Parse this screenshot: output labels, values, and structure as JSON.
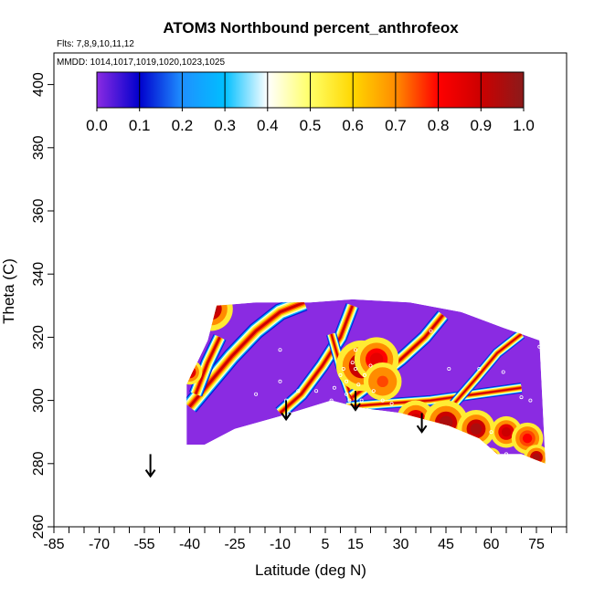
{
  "chart_data": {
    "type": "heatmap",
    "title": "ATOM3 Northbound percent_anthrofeox",
    "info_lines": [
      "Flts: 7,8,9,10,11,12",
      "MMDD: 1014,1017,1019,1020,1023,1025"
    ],
    "xlabel": "Latitude (deg N)",
    "ylabel": "Theta (C)",
    "xlim": [
      -85,
      85
    ],
    "ylim": [
      260,
      410
    ],
    "x_ticks": [
      -85,
      -70,
      -55,
      -40,
      -25,
      -10,
      5,
      15,
      30,
      45,
      60,
      75
    ],
    "x_minor_tick_step": 5,
    "y_ticks": [
      260,
      280,
      300,
      320,
      340,
      360,
      380,
      400
    ],
    "colorbar": {
      "ticks": [
        "0.0",
        "0.1",
        "0.2",
        "0.3",
        "0.4",
        "0.5",
        "0.6",
        "0.7",
        "0.8",
        "0.9",
        "1.0"
      ],
      "range": [
        0,
        1
      ],
      "stops": [
        "#8a2be2",
        "#0000cd",
        "#1e90ff",
        "#00bfff",
        "#ffffff",
        "#ffff66",
        "#ffd700",
        "#ff8c00",
        "#ff0000",
        "#cc0000",
        "#8b1a1a"
      ]
    },
    "background_color": "#8a2be2",
    "domain_outline": [
      [
        -41,
        286
      ],
      [
        -41,
        305
      ],
      [
        -38,
        311
      ],
      [
        -34,
        319
      ],
      [
        -31,
        330
      ],
      [
        -18,
        331
      ],
      [
        0,
        331
      ],
      [
        14,
        332
      ],
      [
        33,
        331
      ],
      [
        50,
        328
      ],
      [
        64,
        323
      ],
      [
        70,
        321
      ],
      [
        76,
        319
      ],
      [
        78,
        280
      ],
      [
        70,
        283
      ],
      [
        62,
        283
      ],
      [
        56,
        288
      ],
      [
        46,
        292
      ],
      [
        38,
        294
      ],
      [
        30,
        296
      ],
      [
        22,
        297
      ],
      [
        15,
        298
      ],
      [
        7,
        300
      ],
      [
        -10,
        295
      ],
      [
        -25,
        291
      ],
      [
        -35,
        286
      ]
    ],
    "bands": [
      {
        "points": [
          [
            -40,
            298
          ],
          [
            -33,
            306
          ],
          [
            -26,
            314
          ],
          [
            -18,
            322
          ],
          [
            -10,
            328
          ],
          [
            -2,
            331
          ]
        ],
        "width": 5
      },
      {
        "points": [
          [
            -38,
            302
          ],
          [
            -34,
            312
          ],
          [
            -30,
            320
          ]
        ],
        "width": 4
      },
      {
        "points": [
          [
            -10,
            296
          ],
          [
            -3,
            302
          ],
          [
            4,
            311
          ],
          [
            10,
            320
          ],
          [
            14,
            330
          ]
        ],
        "width": 4
      },
      {
        "points": [
          [
            14,
            300
          ],
          [
            10,
            311
          ],
          [
            7,
            321
          ]
        ],
        "width": 3
      },
      {
        "points": [
          [
            14,
            301
          ],
          [
            22,
            307
          ],
          [
            30,
            313
          ],
          [
            38,
            320
          ],
          [
            44,
            327
          ]
        ],
        "width": 4
      },
      {
        "points": [
          [
            12,
            298
          ],
          [
            25,
            299
          ],
          [
            40,
            300
          ],
          [
            55,
            302
          ],
          [
            70,
            304
          ]
        ],
        "width": 3
      },
      {
        "points": [
          [
            45,
            296
          ],
          [
            55,
            307
          ],
          [
            62,
            315
          ],
          [
            70,
            321
          ]
        ],
        "width": 3
      }
    ],
    "hotspots": [
      {
        "x": -33,
        "y": 329,
        "r": 7,
        "value": 0.95
      },
      {
        "x": -40,
        "y": 309,
        "r": 4,
        "value": 0.9
      },
      {
        "x": 17,
        "y": 311,
        "r": 8,
        "value": 0.95
      },
      {
        "x": 22,
        "y": 313,
        "r": 7,
        "value": 0.85
      },
      {
        "x": 24,
        "y": 306,
        "r": 6,
        "value": 0.75
      },
      {
        "x": 35,
        "y": 294,
        "r": 6,
        "value": 0.9
      },
      {
        "x": 45,
        "y": 293,
        "r": 7,
        "value": 0.95
      },
      {
        "x": 55,
        "y": 291,
        "r": 6,
        "value": 0.95
      },
      {
        "x": 65,
        "y": 290,
        "r": 5,
        "value": 0.9
      },
      {
        "x": 72,
        "y": 288,
        "r": 5,
        "value": 0.8
      },
      {
        "x": 75,
        "y": 282,
        "r": 4,
        "value": 0.95
      },
      {
        "x": 60,
        "y": 282,
        "r": 3,
        "value": 0.95
      }
    ],
    "sample_points": [
      [
        -38,
        320
      ],
      [
        -32,
        330
      ],
      [
        -18,
        302
      ],
      [
        -10,
        316
      ],
      [
        -10,
        306
      ],
      [
        -8,
        300
      ],
      [
        -7,
        296
      ],
      [
        -4,
        303
      ],
      [
        2,
        303
      ],
      [
        7,
        300
      ],
      [
        8,
        304
      ],
      [
        10,
        308
      ],
      [
        11,
        310
      ],
      [
        12,
        306
      ],
      [
        12,
        302
      ],
      [
        13,
        300
      ],
      [
        14,
        312
      ],
      [
        15,
        310
      ],
      [
        15,
        316
      ],
      [
        16,
        305
      ],
      [
        17,
        300
      ],
      [
        18,
        308
      ],
      [
        20,
        311
      ],
      [
        21,
        303
      ],
      [
        24,
        300
      ],
      [
        27,
        299
      ],
      [
        40,
        322
      ],
      [
        46,
        310
      ],
      [
        56,
        310
      ],
      [
        64,
        309
      ],
      [
        70,
        301
      ],
      [
        76,
        317
      ],
      [
        73,
        300
      ],
      [
        60,
        290
      ],
      [
        65,
        283
      ]
    ],
    "flight_arrows": [
      {
        "x": -53,
        "y_start": 283,
        "y_end": 276
      },
      {
        "x": -8,
        "y_start": 300,
        "y_end": 294
      },
      {
        "x": 15,
        "y_start": 303,
        "y_end": 297
      },
      {
        "x": 37,
        "y_start": 296,
        "y_end": 290
      }
    ]
  }
}
